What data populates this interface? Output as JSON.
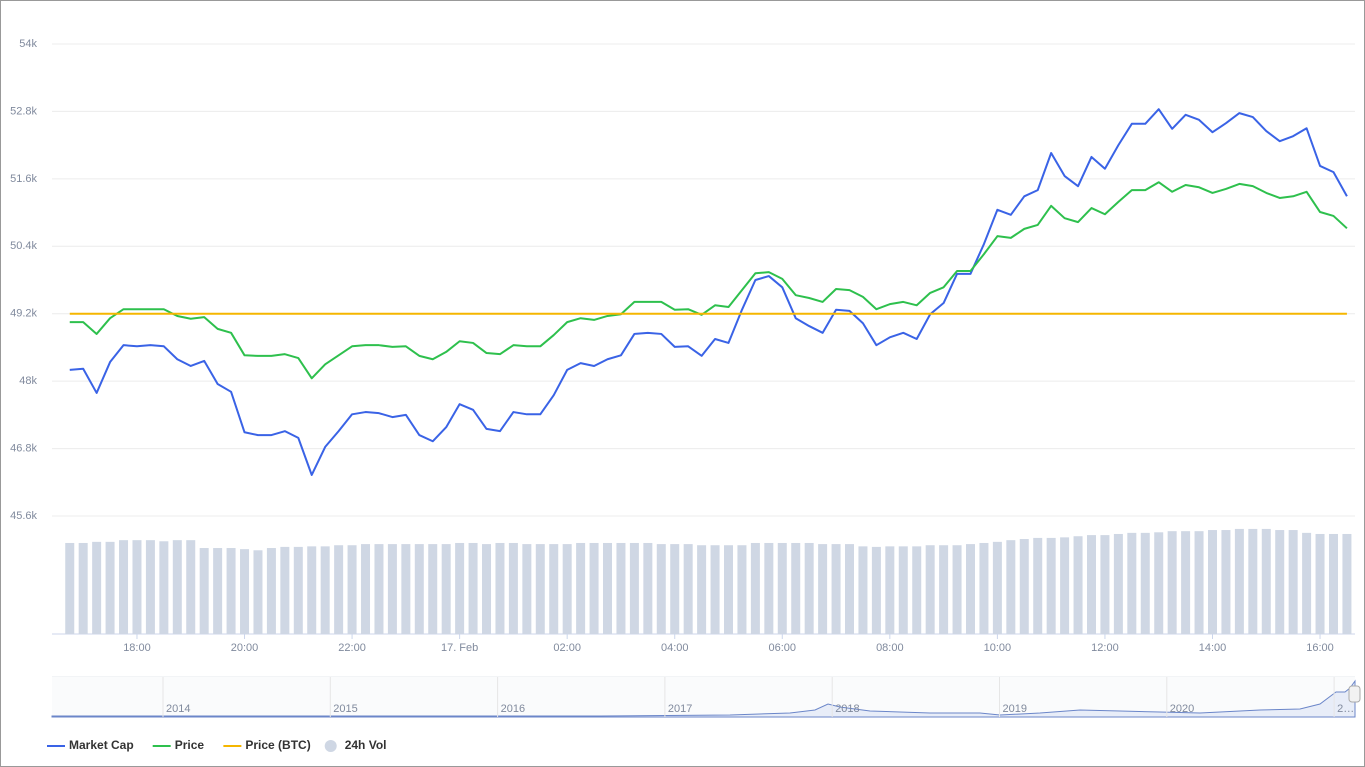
{
  "chart_data": {
    "type": "line",
    "x": [
      16.75,
      17,
      17.25,
      17.5,
      17.75,
      18,
      18.25,
      18.5,
      18.75,
      19,
      19.25,
      19.5,
      19.75,
      20,
      20.25,
      20.5,
      20.75,
      21,
      21.25,
      21.5,
      21.75,
      22,
      22.25,
      22.5,
      22.75,
      23,
      23.25,
      23.5,
      23.75,
      24,
      24.25,
      24.5,
      24.75,
      25,
      25.25,
      25.5,
      25.75,
      26,
      26.25,
      26.5,
      26.75,
      27,
      27.25,
      27.5,
      27.75,
      28,
      28.25,
      28.5,
      28.75,
      29,
      29.25,
      29.5,
      29.75,
      30,
      30.25,
      30.5,
      30.75,
      31,
      31.25,
      31.5,
      31.75,
      32,
      32.25,
      32.5,
      32.75,
      33,
      33.25,
      33.5,
      33.75,
      34,
      34.25,
      34.5,
      34.75,
      35,
      35.25,
      35.5,
      35.75,
      36,
      36.25,
      36.5,
      36.75,
      37,
      37.25,
      37.5,
      37.75,
      38,
      38.25,
      38.5,
      38.75,
      39,
      39.25,
      39.5,
      39.75,
      40,
      40.25,
      40.5
    ],
    "series": [
      {
        "name": "Market Cap",
        "type": "line",
        "color": "#3a63e6",
        "values": [
          48200,
          48220,
          47790,
          48340,
          48640,
          48620,
          48640,
          48620,
          48390,
          48270,
          48360,
          47950,
          47810,
          47090,
          47040,
          47040,
          47110,
          46990,
          46330,
          46830,
          47110,
          47410,
          47450,
          47430,
          47360,
          47400,
          47040,
          46930,
          47180,
          47590,
          47490,
          47150,
          47110,
          47450,
          47410,
          47410,
          47750,
          48200,
          48320,
          48270,
          48390,
          48460,
          48840,
          48860,
          48840,
          48610,
          48620,
          48450,
          48750,
          48680,
          49270,
          49800,
          49870,
          49670,
          49120,
          48980,
          48860,
          49270,
          49250,
          49030,
          48640,
          48780,
          48860,
          48750,
          49190,
          49390,
          49910,
          49910,
          50440,
          51050,
          50960,
          51290,
          51400,
          52060,
          51650,
          51470,
          51990,
          51780,
          52200,
          52580,
          52580,
          52840,
          52490,
          52740,
          52650,
          52430,
          52590,
          52770,
          52700,
          52450,
          52270,
          52360,
          52500,
          51830,
          51720,
          51290
        ]
      },
      {
        "name": "Price",
        "type": "line",
        "color": "#2ec04d",
        "values": [
          49050,
          49050,
          48840,
          49120,
          49280,
          49280,
          49280,
          49280,
          49160,
          49110,
          49140,
          48930,
          48860,
          48460,
          48450,
          48450,
          48480,
          48410,
          48050,
          48300,
          48460,
          48620,
          48640,
          48640,
          48610,
          48620,
          48450,
          48390,
          48520,
          48710,
          48680,
          48500,
          48480,
          48640,
          48620,
          48620,
          48820,
          49050,
          49120,
          49090,
          49160,
          49190,
          49410,
          49410,
          49410,
          49270,
          49280,
          49180,
          49350,
          49320,
          49620,
          49920,
          49940,
          49820,
          49530,
          49480,
          49410,
          49640,
          49620,
          49500,
          49280,
          49370,
          49410,
          49350,
          49570,
          49670,
          49960,
          49960,
          50260,
          50580,
          50550,
          50710,
          50780,
          51120,
          50900,
          50830,
          51080,
          50970,
          51190,
          51400,
          51400,
          51540,
          51370,
          51490,
          51450,
          51350,
          51420,
          51510,
          51470,
          51350,
          51260,
          51290,
          51370,
          51010,
          50940,
          50720
        ]
      },
      {
        "name": "Price (BTC)",
        "type": "line",
        "color": "#f5b600",
        "values": [
          49200,
          49200,
          49200,
          49200,
          49200,
          49200,
          49200,
          49200,
          49200,
          49200,
          49200,
          49200,
          49200,
          49200,
          49200,
          49200,
          49200,
          49200,
          49200,
          49200,
          49200,
          49200,
          49200,
          49200,
          49200,
          49200,
          49200,
          49200,
          49200,
          49200,
          49200,
          49200,
          49200,
          49200,
          49200,
          49200,
          49200,
          49200,
          49200,
          49200,
          49200,
          49200,
          49200,
          49200,
          49200,
          49200,
          49200,
          49200,
          49200,
          49200,
          49200,
          49200,
          49200,
          49200,
          49200,
          49200,
          49200,
          49200,
          49200,
          49200,
          49200,
          49200,
          49200,
          49200,
          49200,
          49200,
          49200,
          49200,
          49200,
          49200,
          49200,
          49200,
          49200,
          49200,
          49200,
          49200,
          49200,
          49200,
          49200,
          49200,
          49200,
          49200,
          49200,
          49200,
          49200,
          49200,
          49200,
          49200,
          49200,
          49200,
          49200,
          49200,
          49200,
          49200,
          49200,
          49200
        ]
      },
      {
        "name": "24h Vol",
        "type": "bar",
        "color": "#cfd7e4",
        "values": [
          45120,
          45120,
          45140,
          45140,
          45170,
          45170,
          45170,
          45150,
          45170,
          45170,
          45030,
          45030,
          45030,
          45010,
          44990,
          45030,
          45050,
          45050,
          45060,
          45060,
          45080,
          45080,
          45100,
          45100,
          45100,
          45100,
          45100,
          45100,
          45100,
          45120,
          45120,
          45100,
          45120,
          45120,
          45100,
          45100,
          45100,
          45100,
          45120,
          45120,
          45120,
          45120,
          45120,
          45120,
          45100,
          45100,
          45100,
          45080,
          45080,
          45080,
          45080,
          45120,
          45120,
          45120,
          45120,
          45120,
          45100,
          45100,
          45100,
          45060,
          45050,
          45060,
          45060,
          45060,
          45080,
          45080,
          45080,
          45100,
          45120,
          45140,
          45170,
          45190,
          45210,
          45210,
          45220,
          45240,
          45260,
          45260,
          45280,
          45300,
          45300,
          45310,
          45330,
          45330,
          45330,
          45350,
          45350,
          45370,
          45370,
          45370,
          45350,
          45350,
          45300,
          45280,
          45280,
          45280
        ]
      }
    ],
    "xlim": [
      16.42,
      40.65
    ],
    "xticks": [
      {
        "value": 18,
        "label": "18:00"
      },
      {
        "value": 20,
        "label": "20:00"
      },
      {
        "value": 22,
        "label": "22:00"
      },
      {
        "value": 24,
        "label": "17. Feb"
      },
      {
        "value": 26,
        "label": "02:00"
      },
      {
        "value": 28,
        "label": "04:00"
      },
      {
        "value": 30,
        "label": "06:00"
      },
      {
        "value": 32,
        "label": "08:00"
      },
      {
        "value": 34,
        "label": "10:00"
      },
      {
        "value": 36,
        "label": "12:00"
      },
      {
        "value": 38,
        "label": "14:00"
      },
      {
        "value": 40,
        "label": "16:00"
      }
    ],
    "ylim": [
      43500,
      54000
    ],
    "yticks": [
      {
        "value": 45600,
        "label": "45.6k"
      },
      {
        "value": 46800,
        "label": "46.8k"
      },
      {
        "value": 48000,
        "label": "48k"
      },
      {
        "value": 49200,
        "label": "49.2k"
      },
      {
        "value": 50400,
        "label": "50.4k"
      },
      {
        "value": 51600,
        "label": "51.6k"
      },
      {
        "value": 52800,
        "label": "52.8k"
      },
      {
        "value": 54000,
        "label": "54k"
      }
    ],
    "grid": true,
    "legend": "bottom-left",
    "navigator_labels": [
      "2014",
      "2015",
      "2016",
      "2017",
      "2018",
      "2019",
      "2020",
      "2…"
    ]
  }
}
